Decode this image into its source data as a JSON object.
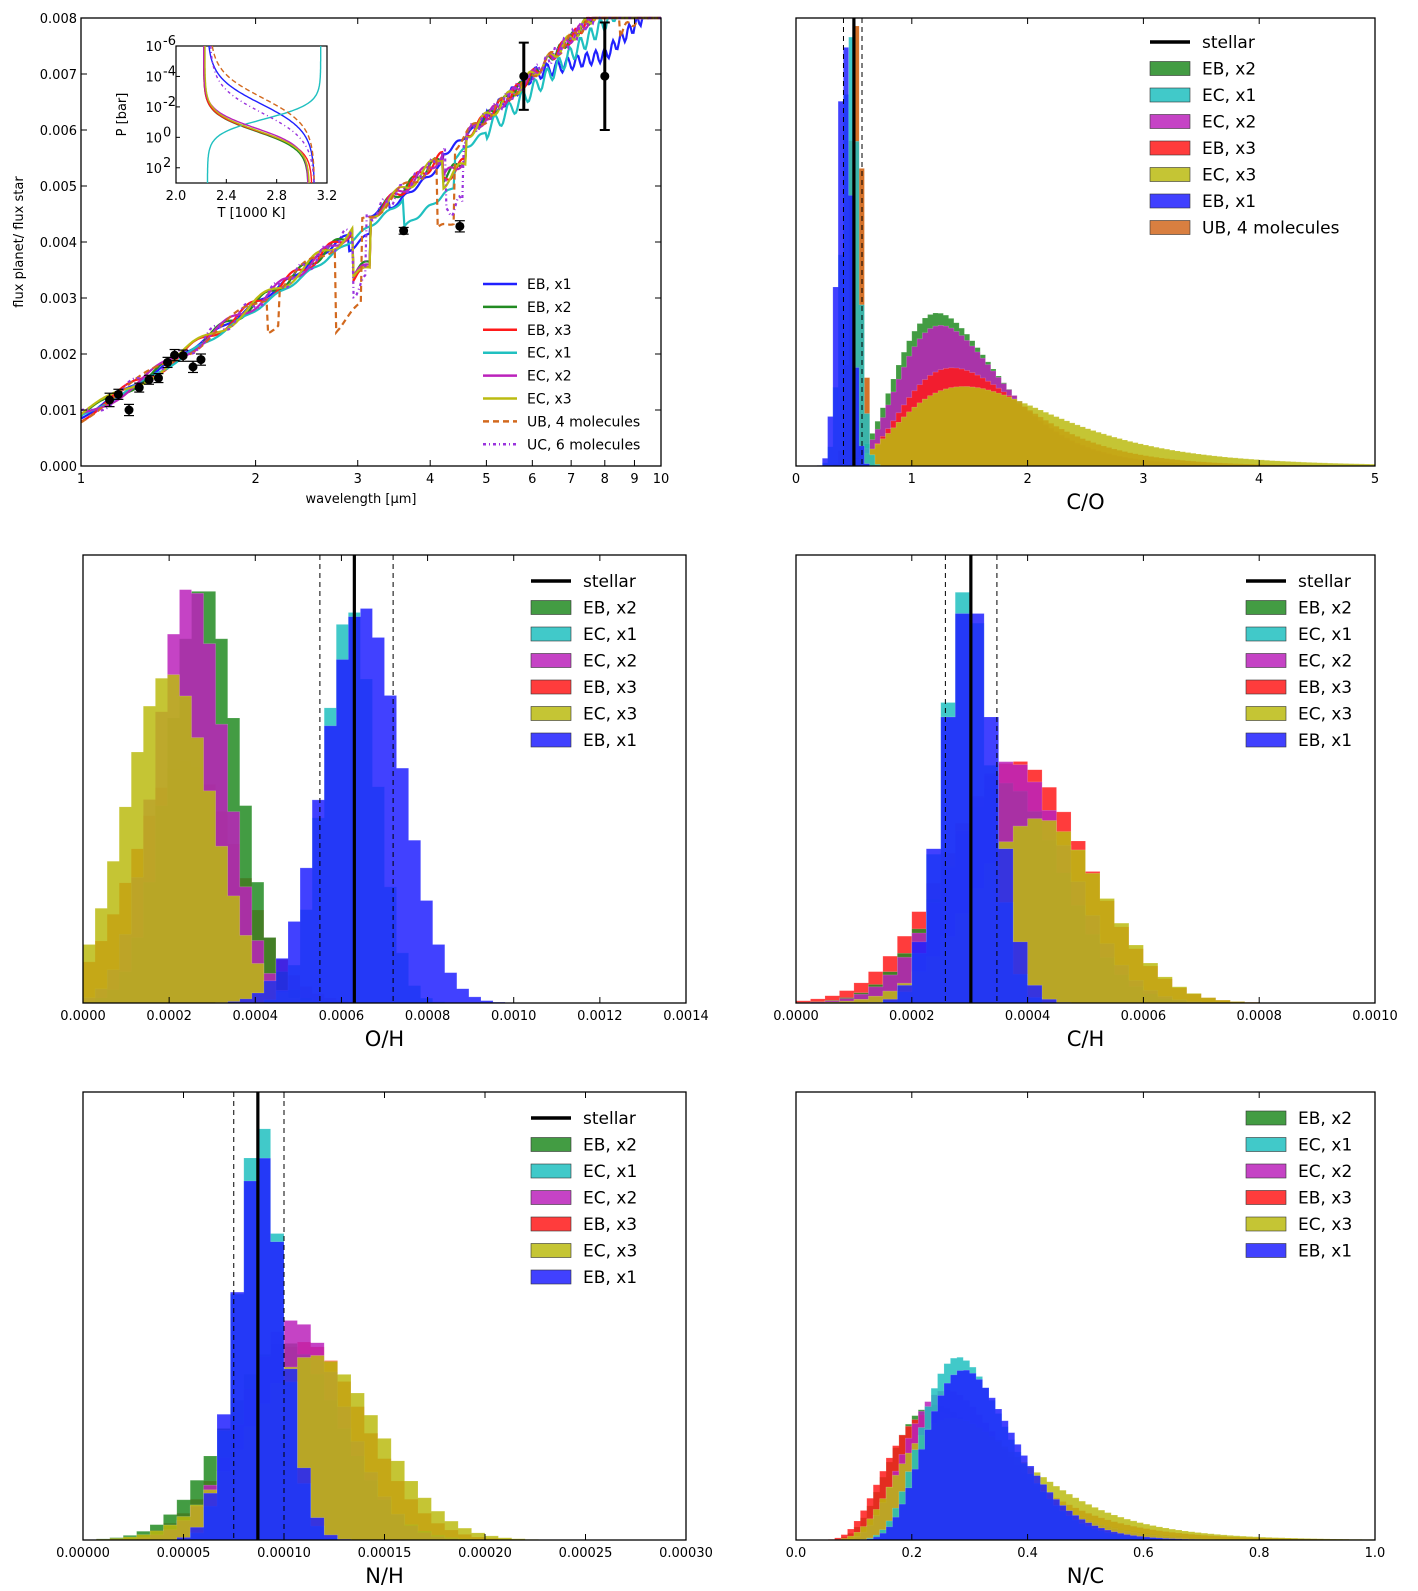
{
  "colors": {
    "EB_x1": "#2020ff",
    "EB_x2": "#228b22",
    "EB_x3": "#ff1a1a",
    "EC_x1": "#20c0c0",
    "EC_x2": "#bb22bb",
    "EC_x3": "#bbbb11",
    "UB": "#d2691e",
    "UC": "#9933dd",
    "stellar": "#000000"
  },
  "chart_data": [
    {
      "type": "line",
      "panel": "spectrum",
      "xlabel": "wavelength [μm]",
      "ylabel": "flux planet/ flux star",
      "xscale": "log",
      "xlim": [
        1,
        10
      ],
      "ylim": [
        0,
        0.008
      ],
      "xticks": [
        "1",
        "2",
        "3",
        "4",
        "5",
        "6",
        "7",
        "8",
        "9",
        "10"
      ],
      "yticks": [
        "0.000",
        "0.001",
        "0.002",
        "0.003",
        "0.004",
        "0.005",
        "0.006",
        "0.007",
        "0.008"
      ],
      "legend_position": "lower-right",
      "legend": [
        "EB, x1",
        "EB, x2",
        "EB, x3",
        "EC, x1",
        "EC, x2",
        "EC, x3",
        "UB, 4 molecules",
        "UC, 6 molecules"
      ],
      "observations": [
        {
          "x": 1.12,
          "y": 0.00118,
          "err": 0.00012
        },
        {
          "x": 1.16,
          "y": 0.00128,
          "err": 9e-05
        },
        {
          "x": 1.21,
          "y": 0.001,
          "err": 0.0001
        },
        {
          "x": 1.26,
          "y": 0.0014,
          "err": 8e-05
        },
        {
          "x": 1.31,
          "y": 0.00154,
          "err": 8e-05
        },
        {
          "x": 1.36,
          "y": 0.00157,
          "err": 8e-05
        },
        {
          "x": 1.41,
          "y": 0.00185,
          "err": 9e-05
        },
        {
          "x": 1.45,
          "y": 0.00198,
          "err": 0.0001
        },
        {
          "x": 1.5,
          "y": 0.00197,
          "err": 0.0001
        },
        {
          "x": 1.56,
          "y": 0.00177,
          "err": 0.0001
        },
        {
          "x": 1.61,
          "y": 0.0019,
          "err": 0.0001
        },
        {
          "x": 3.6,
          "y": 0.0042,
          "err": 6e-05
        },
        {
          "x": 4.5,
          "y": 0.00428,
          "err": 0.0001
        },
        {
          "x": 5.8,
          "y": 0.00696,
          "err": 0.0006
        },
        {
          "x": 8.0,
          "y": 0.00696,
          "err": 0.00096
        }
      ],
      "inset": {
        "xlabel": "T [1000 K]",
        "ylabel": "P [bar]",
        "xticks": [
          "2.0",
          "2.4",
          "2.8",
          "3.2"
        ],
        "yticks": [
          "10",
          "10",
          "10",
          "10"
        ],
        "ytick_exponents": [
          "-6",
          "-4",
          "-2",
          "0",
          "2"
        ],
        "xlim": [
          2.0,
          3.2
        ],
        "ylim_log10": [
          -6,
          3
        ]
      }
    },
    {
      "type": "histogram",
      "panel": "C/O",
      "xlabel": "C/O",
      "xlim": [
        0,
        5
      ],
      "xticks": [
        "0",
        "1",
        "2",
        "3",
        "4",
        "5"
      ],
      "stellar": 0.5,
      "stellar_range": [
        0.41,
        0.57
      ],
      "legend": [
        "stellar",
        "EB, x2",
        "EC, x1",
        "EC, x2",
        "EB, x3",
        "EC, x3",
        "EB, x1",
        "UB, 4 molecules"
      ],
      "legend_position": "upper-right"
    },
    {
      "type": "histogram",
      "panel": "O/H",
      "xlabel": "O/H",
      "xlim": [
        0,
        0.0014
      ],
      "xticks": [
        "0.0000",
        "0.0002",
        "0.0004",
        "0.0006",
        "0.0008",
        "0.0010",
        "0.0012",
        "0.0014"
      ],
      "stellar": 0.00063,
      "stellar_range": [
        0.00055,
        0.00072
      ],
      "legend": [
        "stellar",
        "EB, x2",
        "EC, x1",
        "EC, x2",
        "EB, x3",
        "EC, x3",
        "EB, x1"
      ],
      "legend_position": "upper-right"
    },
    {
      "type": "histogram",
      "panel": "C/H",
      "xlabel": "C/H",
      "xlim": [
        0,
        0.001
      ],
      "xticks": [
        "0.0000",
        "0.0002",
        "0.0004",
        "0.0006",
        "0.0008",
        "0.0010"
      ],
      "stellar": 0.000302,
      "stellar_range": [
        0.000258,
        0.000347
      ],
      "legend": [
        "stellar",
        "EB, x2",
        "EC, x1",
        "EC, x2",
        "EB, x3",
        "EC, x3",
        "EB, x1"
      ],
      "legend_position": "upper-right"
    },
    {
      "type": "histogram",
      "panel": "N/H",
      "xlabel": "N/H",
      "xlim": [
        0,
        0.0003
      ],
      "xticks": [
        "0.00000",
        "0.00005",
        "0.00010",
        "0.00015",
        "0.00020",
        "0.00025",
        "0.00030"
      ],
      "stellar": 8.7e-05,
      "stellar_range": [
        7.5e-05,
        0.0001
      ],
      "legend": [
        "stellar",
        "EB, x2",
        "EC, x1",
        "EC, x2",
        "EB, x3",
        "EC, x3",
        "EB, x1"
      ],
      "legend_position": "upper-right"
    },
    {
      "type": "histogram",
      "panel": "N/C",
      "xlabel": "N/C",
      "xlim": [
        0,
        1.0
      ],
      "xticks": [
        "0.0",
        "0.2",
        "0.4",
        "0.6",
        "0.8",
        "1.0"
      ],
      "legend": [
        "EB, x2",
        "EC, x1",
        "EC, x2",
        "EB, x3",
        "EC, x3",
        "EB, x1"
      ],
      "legend_position": "upper-right"
    }
  ]
}
